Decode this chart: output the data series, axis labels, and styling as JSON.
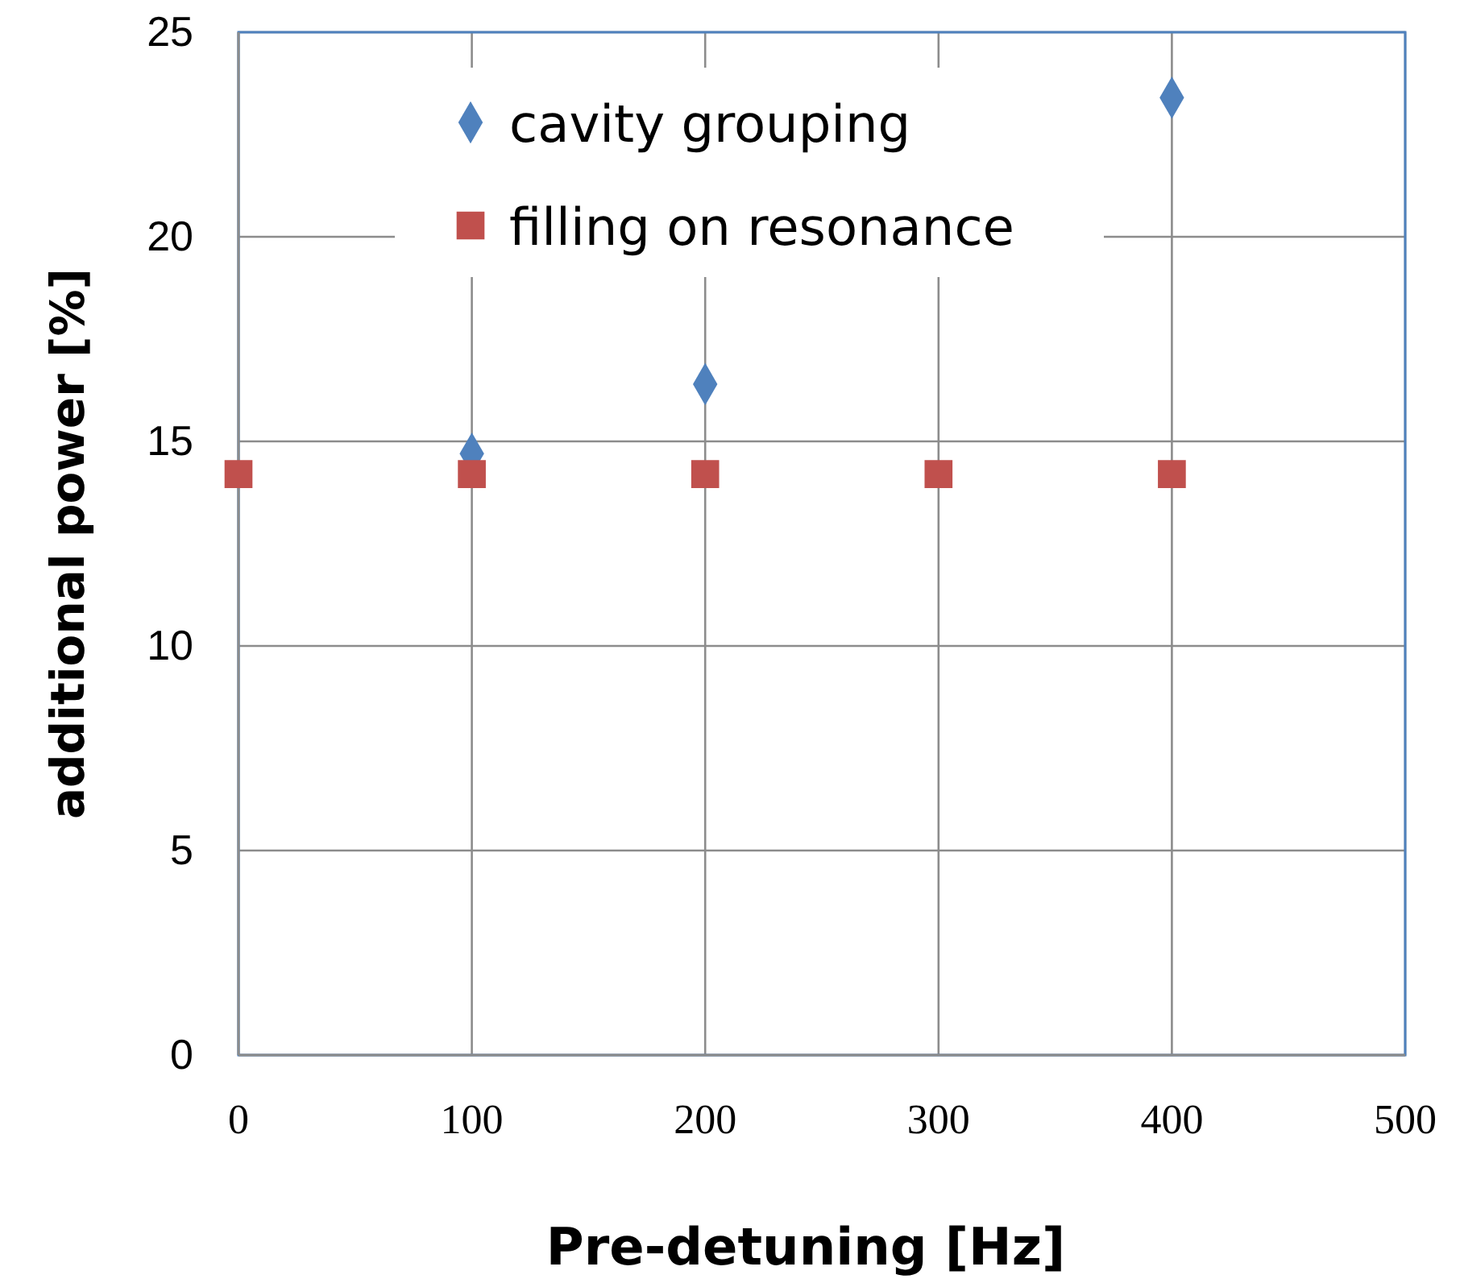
{
  "chart_data": {
    "type": "scatter",
    "xlabel": "Pre-detuning [Hz]",
    "ylabel": "additional power  [%]",
    "xlim": [
      0,
      500
    ],
    "xticks": [
      0,
      100,
      200,
      300,
      400,
      500
    ],
    "ylim": [
      0,
      25
    ],
    "yticks": [
      0,
      5,
      10,
      15,
      20,
      25
    ],
    "grid": true,
    "legend": "top",
    "series": [
      {
        "name": "cavity grouping",
        "color": "#4f81bd",
        "marker": "diamond",
        "x": [
          100,
          200,
          400
        ],
        "values": [
          14.7,
          16.4,
          23.4
        ]
      },
      {
        "name": "filling on resonance",
        "color": "#c0504d",
        "marker": "square",
        "x": [
          0,
          100,
          200,
          300,
          400
        ],
        "values": [
          14.2,
          14.2,
          14.2,
          14.2,
          14.2
        ]
      }
    ]
  }
}
